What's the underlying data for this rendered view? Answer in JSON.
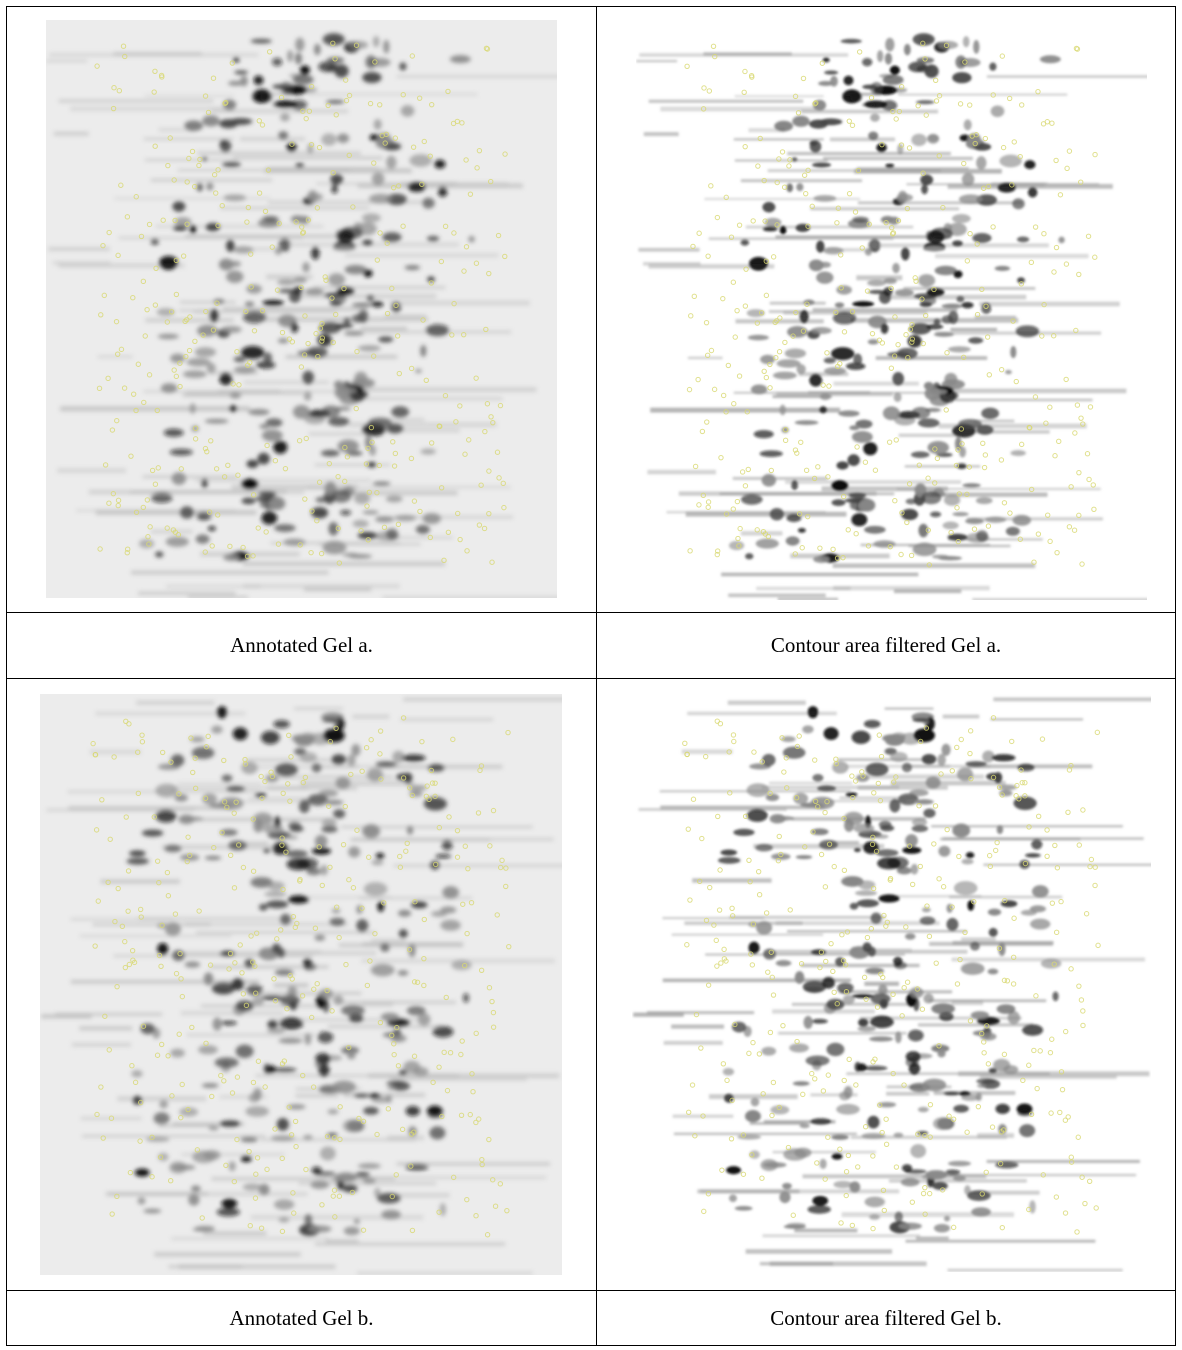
{
  "panels": [
    {
      "caption": "Annotated Gel a."
    },
    {
      "caption": "Contour area filtered Gel a."
    },
    {
      "caption": "Annotated Gel b."
    },
    {
      "caption": "Contour area filtered Gel b."
    }
  ]
}
